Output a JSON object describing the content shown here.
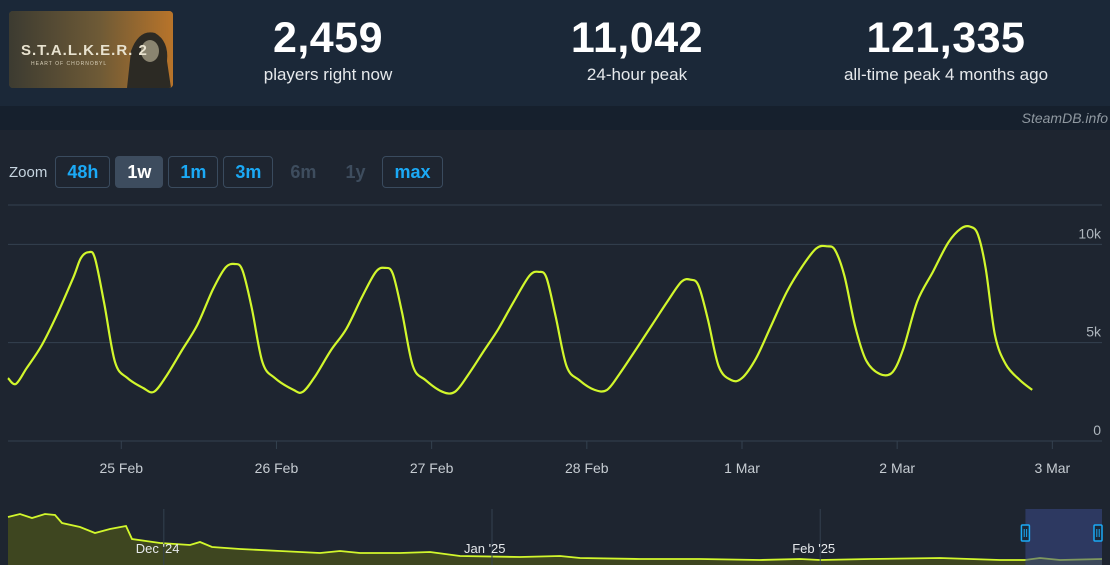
{
  "game": {
    "thumbnail_text": "S.T.A.L.K.E.R. 2",
    "thumbnail_subtext": "HEART OF CHORNOBYL"
  },
  "stats": {
    "now": {
      "value": "2,459",
      "label": "players right now"
    },
    "peak24": {
      "value": "11,042",
      "label": "24-hour peak"
    },
    "alltime": {
      "value": "121,335",
      "label": "all-time peak 4 months ago"
    }
  },
  "watermark": "SteamDB.info",
  "zoom": {
    "label": "Zoom",
    "options": [
      {
        "label": "48h",
        "state": "enabled"
      },
      {
        "label": "1w",
        "state": "active"
      },
      {
        "label": "1m",
        "state": "enabled"
      },
      {
        "label": "3m",
        "state": "enabled"
      },
      {
        "label": "6m",
        "state": "disabled"
      },
      {
        "label": "1y",
        "state": "disabled"
      },
      {
        "label": "max",
        "state": "enabled"
      }
    ]
  },
  "colors": {
    "line": "#d2f72c",
    "grid": "#34414f",
    "axis_text": "#aeb6bd",
    "nav_fill": "#3e4620",
    "nav_selection": "#3a4a8a",
    "nav_handle": "#1ba9f5"
  },
  "chart_data": {
    "type": "line",
    "title": "",
    "xlabel": "",
    "ylabel": "",
    "ylim": [
      0,
      12000
    ],
    "yticks": [
      {
        "value": 0,
        "label": "0"
      },
      {
        "value": 5000,
        "label": "5k"
      },
      {
        "value": 10000,
        "label": "10k"
      }
    ],
    "xlim": [
      24.1,
      31.15
    ],
    "xticks": [
      {
        "value": 24.83,
        "label": "25 Feb"
      },
      {
        "value": 25.83,
        "label": "26 Feb"
      },
      {
        "value": 26.83,
        "label": "27 Feb"
      },
      {
        "value": 27.83,
        "label": "28 Feb"
      },
      {
        "value": 28.83,
        "label": "1 Mar"
      },
      {
        "value": 29.83,
        "label": "2 Mar"
      },
      {
        "value": 30.83,
        "label": "3 Mar"
      }
    ],
    "series": [
      {
        "values": [
          [
            24.1,
            3200
          ],
          [
            24.15,
            2900
          ],
          [
            24.22,
            3700
          ],
          [
            24.32,
            4900
          ],
          [
            24.42,
            6500
          ],
          [
            24.52,
            8300
          ],
          [
            24.57,
            9300
          ],
          [
            24.62,
            9600
          ],
          [
            24.66,
            9300
          ],
          [
            24.72,
            7000
          ],
          [
            24.79,
            4000
          ],
          [
            24.87,
            3200
          ],
          [
            24.97,
            2700
          ],
          [
            25.04,
            2500
          ],
          [
            25.12,
            3300
          ],
          [
            25.22,
            4600
          ],
          [
            25.32,
            5900
          ],
          [
            25.42,
            7700
          ],
          [
            25.5,
            8800
          ],
          [
            25.56,
            9000
          ],
          [
            25.61,
            8700
          ],
          [
            25.67,
            6800
          ],
          [
            25.74,
            4000
          ],
          [
            25.82,
            3200
          ],
          [
            25.94,
            2600
          ],
          [
            26.0,
            2500
          ],
          [
            26.08,
            3300
          ],
          [
            26.18,
            4600
          ],
          [
            26.28,
            5700
          ],
          [
            26.38,
            7300
          ],
          [
            26.47,
            8600
          ],
          [
            26.53,
            8800
          ],
          [
            26.58,
            8500
          ],
          [
            26.64,
            6500
          ],
          [
            26.71,
            3800
          ],
          [
            26.79,
            3100
          ],
          [
            26.9,
            2500
          ],
          [
            26.98,
            2500
          ],
          [
            27.06,
            3300
          ],
          [
            27.16,
            4500
          ],
          [
            27.26,
            5700
          ],
          [
            27.36,
            7100
          ],
          [
            27.46,
            8400
          ],
          [
            27.52,
            8600
          ],
          [
            27.57,
            8300
          ],
          [
            27.63,
            6300
          ],
          [
            27.7,
            3800
          ],
          [
            27.78,
            3100
          ],
          [
            27.88,
            2600
          ],
          [
            27.96,
            2600
          ],
          [
            28.04,
            3400
          ],
          [
            28.15,
            4700
          ],
          [
            28.25,
            5900
          ],
          [
            28.35,
            7100
          ],
          [
            28.44,
            8100
          ],
          [
            28.5,
            8200
          ],
          [
            28.55,
            7900
          ],
          [
            28.61,
            6200
          ],
          [
            28.68,
            3800
          ],
          [
            28.76,
            3100
          ],
          [
            28.83,
            3200
          ],
          [
            28.92,
            4200
          ],
          [
            29.02,
            5900
          ],
          [
            29.12,
            7600
          ],
          [
            29.22,
            8900
          ],
          [
            29.31,
            9800
          ],
          [
            29.38,
            9900
          ],
          [
            29.43,
            9700
          ],
          [
            29.49,
            8400
          ],
          [
            29.56,
            5800
          ],
          [
            29.63,
            4100
          ],
          [
            29.72,
            3400
          ],
          [
            29.8,
            3500
          ],
          [
            29.87,
            4700
          ],
          [
            29.96,
            7100
          ],
          [
            30.06,
            8600
          ],
          [
            30.16,
            10100
          ],
          [
            30.24,
            10800
          ],
          [
            30.3,
            10900
          ],
          [
            30.35,
            10500
          ],
          [
            30.4,
            8800
          ],
          [
            30.46,
            5400
          ],
          [
            30.53,
            3900
          ],
          [
            30.62,
            3100
          ],
          [
            30.7,
            2600
          ]
        ]
      }
    ]
  },
  "navigator": {
    "labels": [
      {
        "position": 0.115,
        "label": "Dec '24"
      },
      {
        "position": 0.415,
        "label": "Jan '25"
      },
      {
        "position": 0.715,
        "label": "Feb '25"
      }
    ],
    "selection": [
      0.93,
      1.0
    ]
  }
}
